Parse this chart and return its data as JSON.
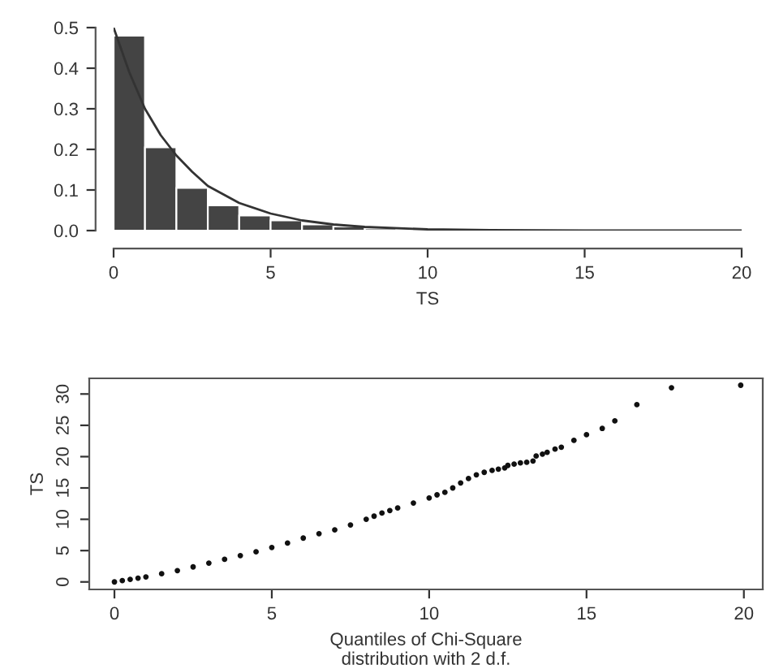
{
  "chart_data": [
    {
      "type": "histogram",
      "xlabel": "TS",
      "bins": [
        0,
        1,
        2,
        3,
        4,
        5,
        6,
        7,
        8,
        9
      ],
      "values": [
        0.48,
        0.205,
        0.105,
        0.062,
        0.037,
        0.025,
        0.015,
        0.01,
        0.005
      ],
      "color": "#444444",
      "series": [
        {
          "type": "line",
          "color": "#333333",
          "x": [
            0,
            0.5,
            1,
            1.5,
            2,
            2.5,
            3,
            4,
            5,
            6,
            7,
            8,
            10,
            12,
            15,
            20
          ],
          "values": [
            0.5,
            0.39,
            0.3,
            0.235,
            0.185,
            0.145,
            0.11,
            0.068,
            0.042,
            0.025,
            0.015,
            0.009,
            0.003,
            0.001,
            0,
            0
          ]
        }
      ],
      "xlim": [
        0,
        20
      ],
      "ylim": [
        0,
        0.5
      ],
      "xticks": [
        0,
        5,
        10,
        15,
        20
      ],
      "yticks": [
        {
          "value": 0,
          "label": "0.0"
        },
        0.1,
        0.2,
        0.3,
        0.4,
        0.5
      ],
      "grid": false
    },
    {
      "type": "scatter",
      "xlabel": "Quantiles of Chi-Square\ndistribution with 2 d.f.",
      "ylabel": "TS",
      "marker": "circle",
      "series": [
        {
          "color": "#111111",
          "x": [
            0,
            0.25,
            0.5,
            0.75,
            1,
            1.5,
            2,
            2.5,
            3,
            3.5,
            4,
            4.5,
            5,
            5.5,
            6,
            6.5,
            7,
            7.5,
            8,
            8.25,
            8.5,
            8.75,
            9,
            9.5,
            10,
            10.25,
            10.5,
            10.75,
            11,
            11.25,
            11.5,
            11.75,
            12,
            12.2,
            12.4,
            12.5,
            12.7,
            12.9,
            13.1,
            13.3,
            13.4,
            13.6,
            13.75,
            14.0,
            14.2,
            14.6,
            15.0,
            15.5,
            15.9,
            16.6,
            17.7,
            19.9
          ],
          "values": [
            0,
            0.2,
            0.4,
            0.6,
            0.8,
            1.3,
            1.8,
            2.4,
            3.0,
            3.6,
            4.2,
            4.8,
            5.5,
            6.2,
            7.0,
            7.7,
            8.3,
            9.1,
            10.0,
            10.5,
            11.0,
            11.4,
            11.8,
            12.6,
            13.4,
            13.9,
            14.3,
            15.0,
            15.8,
            16.5,
            17.1,
            17.5,
            17.8,
            18.0,
            18.2,
            18.6,
            18.8,
            19.0,
            19.1,
            19.3,
            20.1,
            20.4,
            20.7,
            21.2,
            21.5,
            22.6,
            23.5,
            24.5,
            25.7,
            28.3,
            31.0,
            31.4
          ]
        }
      ],
      "xlim": [
        -0.8,
        20.6
      ],
      "ylim": [
        -1.2,
        32.5
      ],
      "xticks": [
        0,
        5,
        10,
        15,
        20
      ],
      "yticks": [
        0,
        5,
        10,
        15,
        20,
        25,
        30
      ],
      "grid": false
    }
  ]
}
